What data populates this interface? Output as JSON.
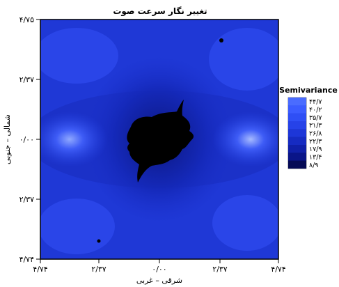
{
  "chart_data": {
    "type": "heatmap",
    "title": "تغییر نگار سرعت صوت",
    "xlabel": "شرقی – غربی",
    "ylabel": "شمالی – جنوبی",
    "x_ticks": [
      "۴/۷۴",
      "۲/۳۷",
      "۰/۰۰",
      "۲/۳۷",
      "۴/۷۴"
    ],
    "y_ticks": [
      "۴/۷۵",
      "۲/۳۷",
      "۰/۰۰",
      "۲/۳۷",
      "۴/۷۴"
    ],
    "legend": {
      "title": "Semivariance",
      "levels": [
        "۴۴/۷",
        "۴۰/۲",
        "۳۵/۷",
        "۳۱/۳",
        "۲۶/۸",
        "۲۲/۳",
        "۱۷/۹",
        "۱۳/۴",
        "۸/۹"
      ],
      "colors": [
        "#4a6cff",
        "#3b5cff",
        "#2f4ff5",
        "#2642e8",
        "#1d36d8",
        "#162bc2",
        "#1020a8",
        "#0a1588",
        "#050a55"
      ]
    },
    "grid": false,
    "colors": {
      "center_blob": "#000000",
      "background": "#ffffff"
    }
  }
}
